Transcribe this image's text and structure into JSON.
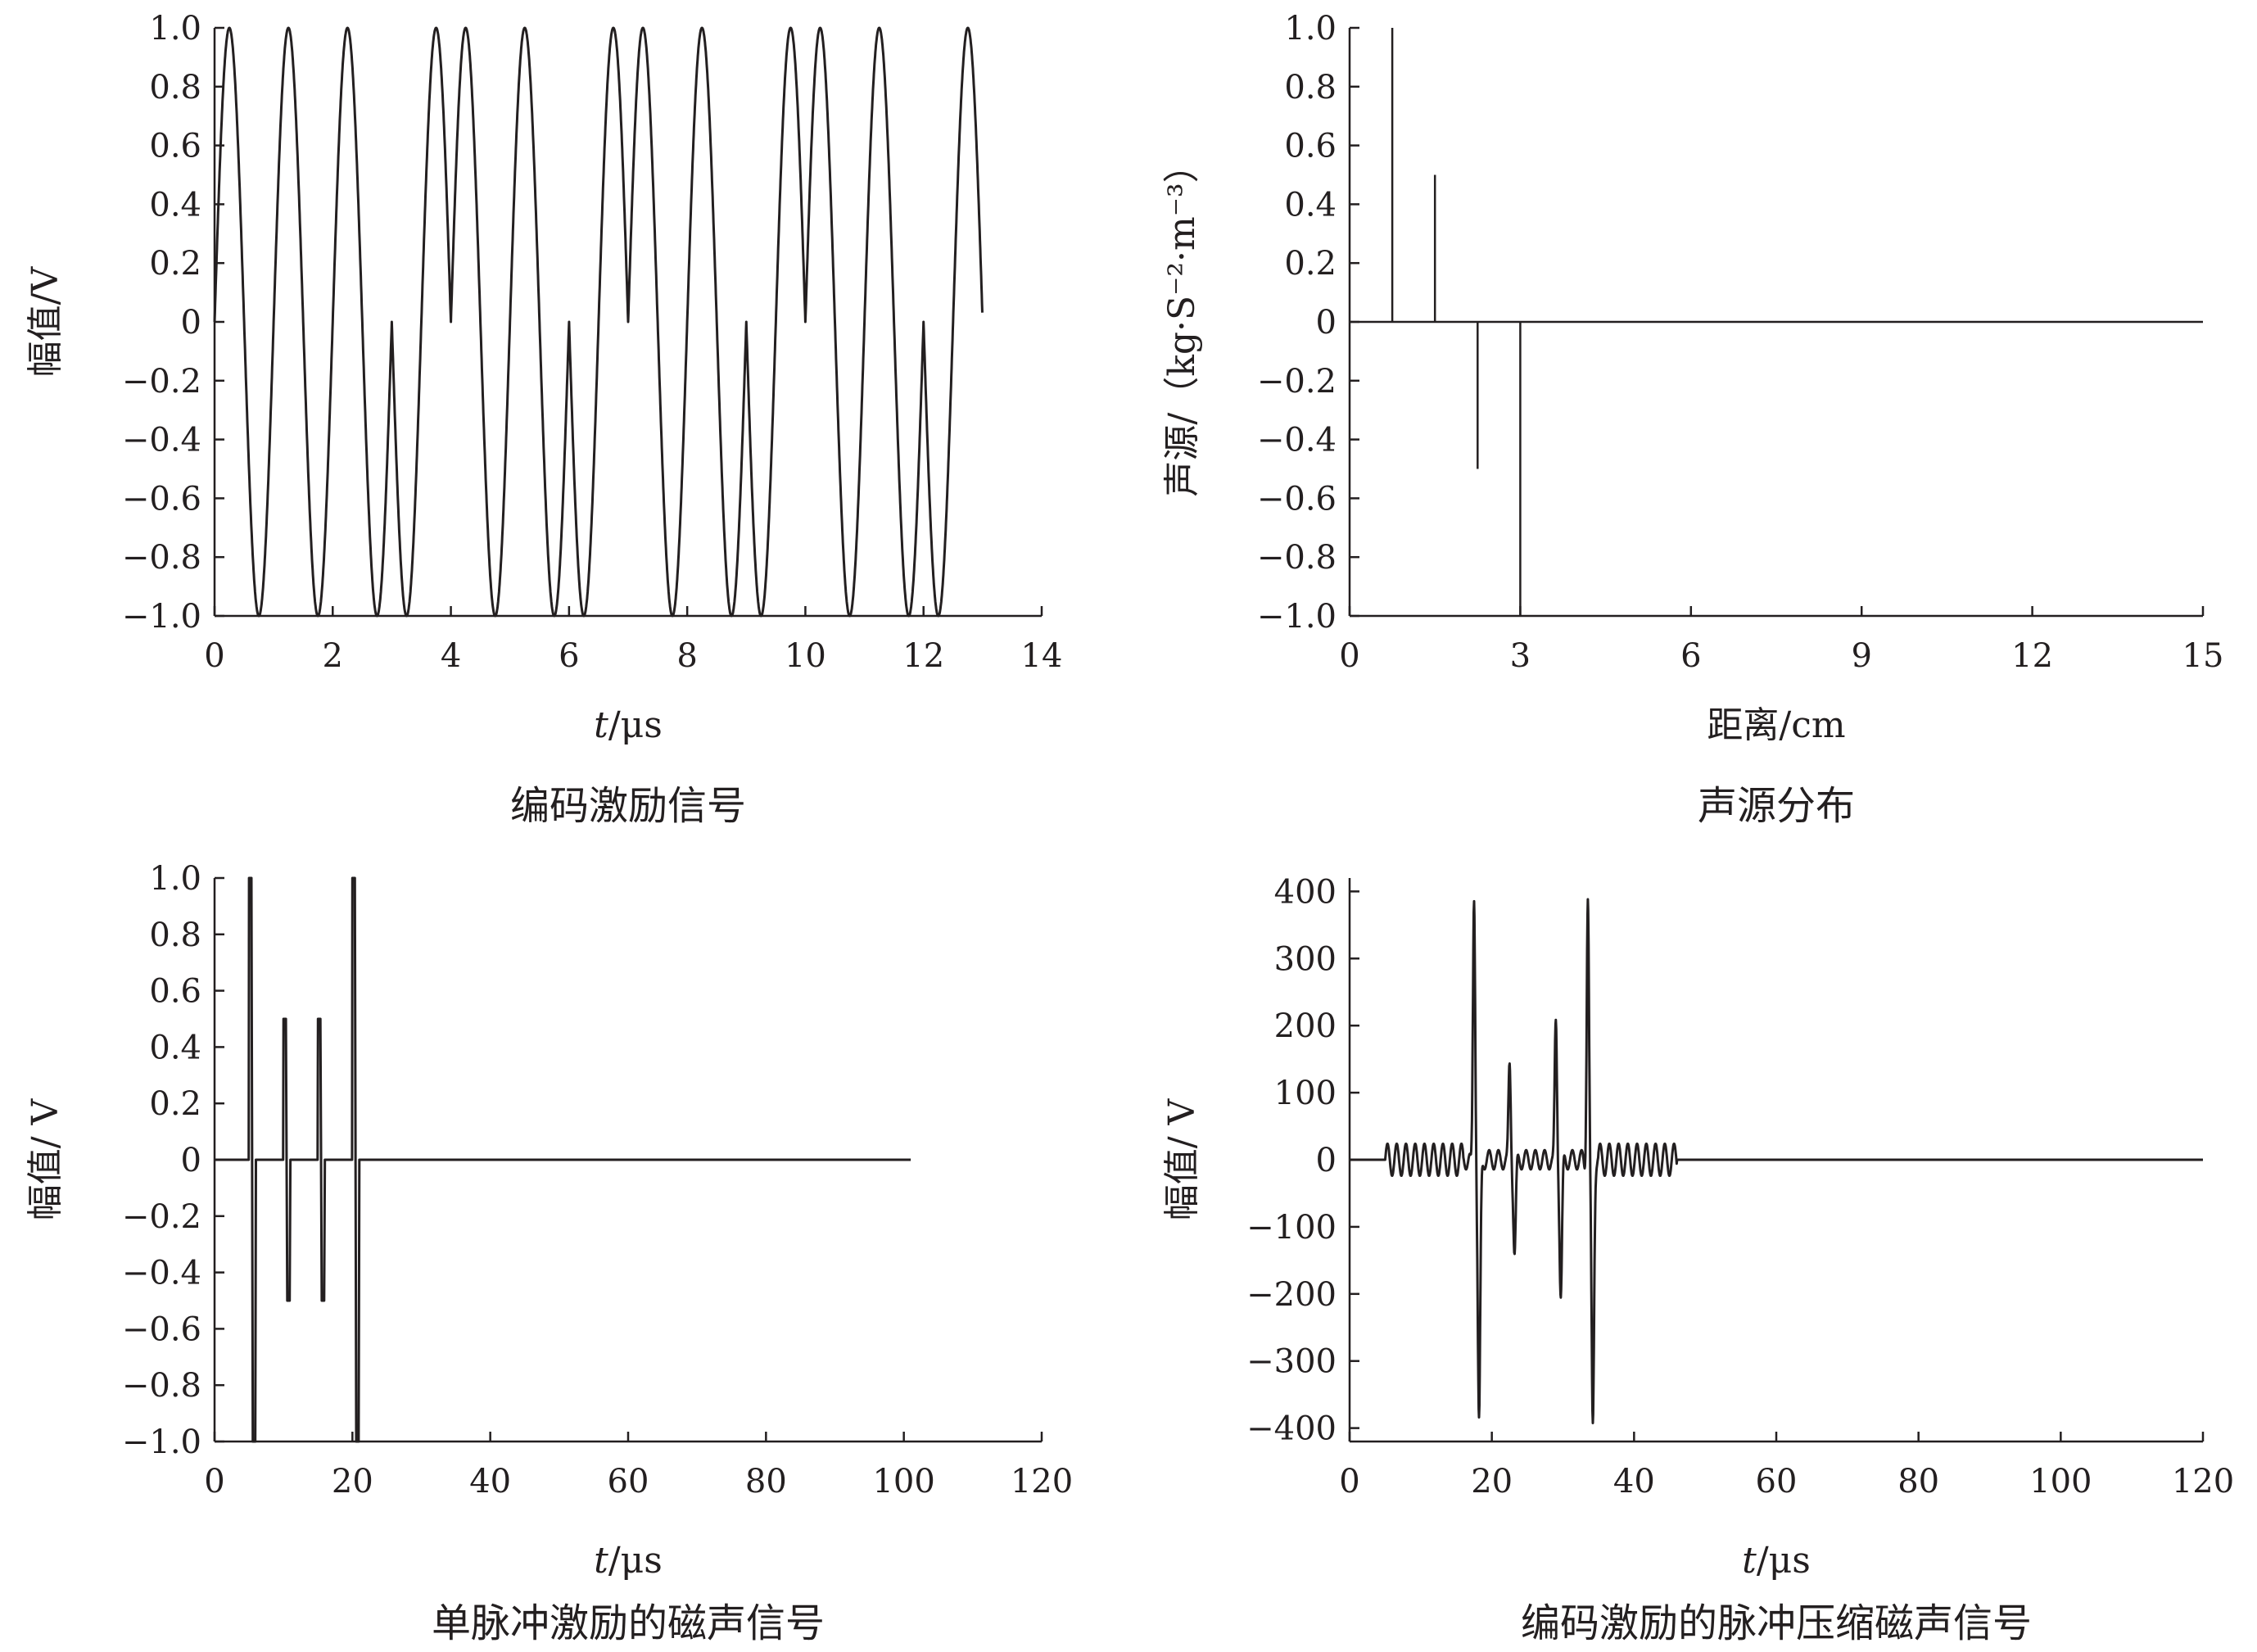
{
  "chart_data": [
    {
      "id": "tl",
      "type": "line",
      "caption": "编码激励信号",
      "xlabel_italic": "t",
      "xlabel_rest": "/μs",
      "ylabel": "幅值/V",
      "xlim": [
        0,
        14
      ],
      "ylim": [
        -1.0,
        1.0
      ],
      "xticks": [
        "0",
        "2",
        "4",
        "6",
        "8",
        "10",
        "12",
        "14"
      ],
      "yticks": [
        "1.0",
        "0.8",
        "0.6",
        "0.4",
        "0.2",
        "0",
        "−0.2",
        "−0.4",
        "−0.6",
        "−0.8",
        "−1.0"
      ],
      "carrier_period_us": 1.0,
      "code_bits": [
        1,
        1,
        1,
        -1,
        1,
        1,
        -1,
        1,
        1,
        -1,
        1,
        1,
        -1
      ],
      "x_end": 13
    },
    {
      "id": "tr",
      "type": "stem",
      "caption": "声源分布",
      "xlabel_italic": "",
      "xlabel_rest": "距离/cm",
      "ylabel": "声源/（kg·S⁻²·m⁻³）",
      "xlim": [
        0,
        15
      ],
      "ylim": [
        -1.0,
        1.0
      ],
      "xticks": [
        "0",
        "3",
        "6",
        "9",
        "12",
        "15"
      ],
      "yticks": [
        "1.0",
        "0.8",
        "0.6",
        "0.4",
        "0.2",
        "0",
        "−0.2",
        "−0.4",
        "−0.6",
        "−0.8",
        "−1.0"
      ],
      "stems": [
        {
          "x": 0.75,
          "y": 1.0
        },
        {
          "x": 1.5,
          "y": 0.5
        },
        {
          "x": 2.25,
          "y": -0.5
        },
        {
          "x": 3.0,
          "y": -1.0
        }
      ]
    },
    {
      "id": "bl",
      "type": "line",
      "caption": "单脉冲激励的磁声信号",
      "xlabel_italic": "t",
      "xlabel_rest": "/μs",
      "ylabel": "幅值/ V",
      "xlim": [
        0,
        120
      ],
      "ylim": [
        -1.0,
        1.0
      ],
      "xticks": [
        "0",
        "20",
        "40",
        "60",
        "80",
        "100",
        "120"
      ],
      "yticks": [
        "1.0",
        "0.8",
        "0.6",
        "0.4",
        "0.2",
        "0",
        "−0.2",
        "−0.4",
        "−0.6",
        "−0.8",
        "−1.0"
      ],
      "pulses": [
        {
          "t": 5.0,
          "amp": 1.0
        },
        {
          "t": 10.0,
          "amp": 0.5
        },
        {
          "t": 15.0,
          "amp": 0.5
        },
        {
          "t": 20.0,
          "amp": 1.0
        }
      ],
      "x_end": 101
    },
    {
      "id": "br",
      "type": "line",
      "caption": "编码激励的脉冲压缩磁声信号",
      "xlabel_italic": "t",
      "xlabel_rest": "/μs",
      "ylabel": "幅值/ V",
      "xlim": [
        0,
        120
      ],
      "ylim": [
        -420,
        420
      ],
      "xticks": [
        "0",
        "20",
        "40",
        "60",
        "80",
        "100",
        "120"
      ],
      "yticks": [
        "400",
        "300",
        "200",
        "100",
        "0",
        "−100",
        "−200",
        "−300",
        "−400"
      ],
      "peaks": [
        {
          "t": 17.5,
          "amp": 395
        },
        {
          "t": 22.5,
          "amp": 140
        },
        {
          "t": 29.0,
          "amp": 205
        },
        {
          "t": 33.5,
          "amp": 395
        }
      ],
      "sidelobe_amp": 30,
      "x_start": 0,
      "x_end": 120
    }
  ]
}
